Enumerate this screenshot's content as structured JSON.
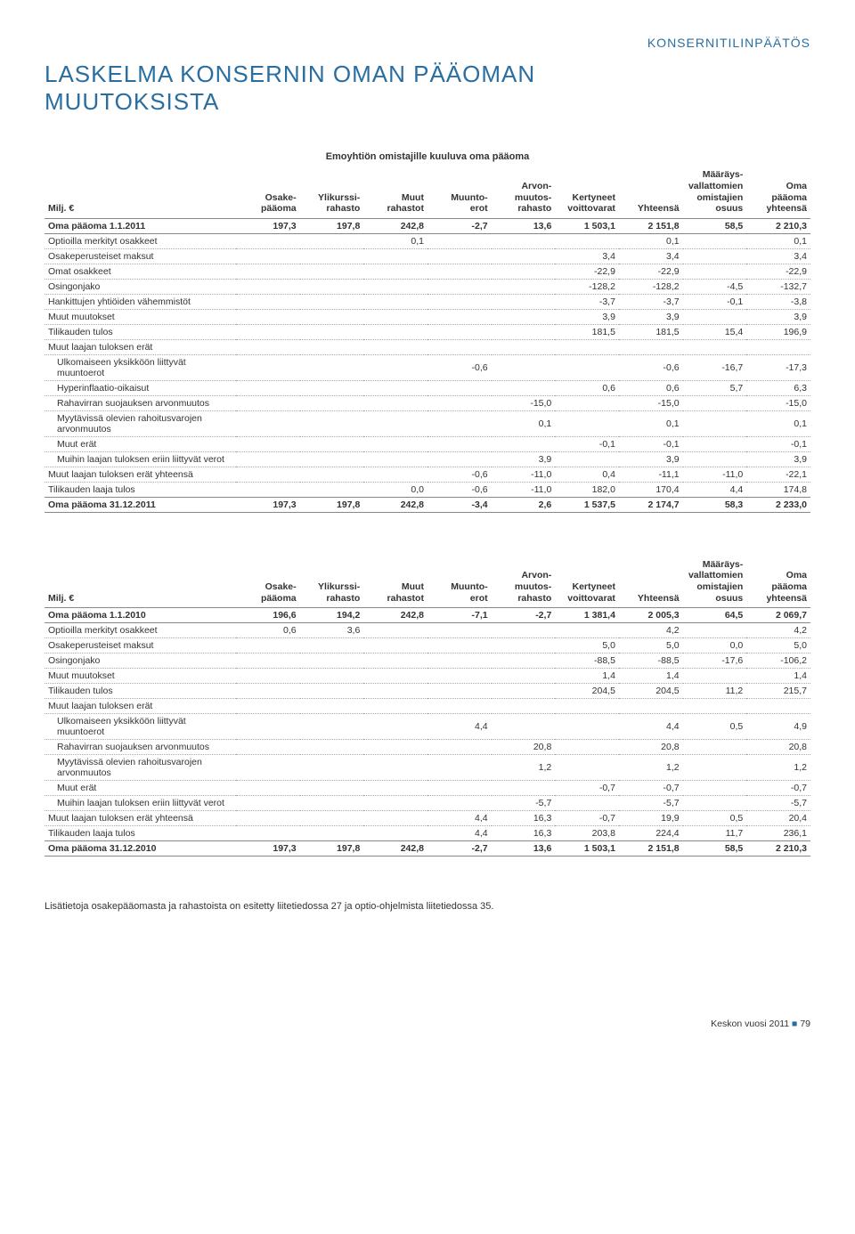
{
  "header_right": "KONSERNITILINPÄÄTÖS",
  "title_line1": "LASKELMA KONSERNIN OMAN PÄÄOMAN",
  "title_line2": "MUUTOKSISTA",
  "subtitle": "Emoyhtiön omistajille kuuluva oma pääoma",
  "columns": [
    "Milj. €",
    "Osake-\npääoma",
    "Ylikurssi-\nrahasto",
    "Muut\nrahastot",
    "Muunto-\nerot",
    "Arvon-\nmuutos-\nrahasto",
    "Kertyneet\nvoittovarat",
    "Yhteensä",
    "Määräys-\nvallattomien\nomistajien\nosuus",
    "Oma\npääoma\nyhteensä"
  ],
  "table1": [
    {
      "bold": true,
      "label": "Oma pääoma 1.1.2011",
      "cells": [
        "197,3",
        "197,8",
        "242,8",
        "-2,7",
        "13,6",
        "1 503,1",
        "2 151,8",
        "58,5",
        "2 210,3"
      ]
    },
    {
      "label": "Optioilla merkityt osakkeet",
      "cells": [
        "",
        "",
        "0,1",
        "",
        "",
        "",
        "0,1",
        "",
        "0,1"
      ]
    },
    {
      "label": "Osakeperusteiset maksut",
      "cells": [
        "",
        "",
        "",
        "",
        "",
        "3,4",
        "3,4",
        "",
        "3,4"
      ]
    },
    {
      "label": "Omat osakkeet",
      "cells": [
        "",
        "",
        "",
        "",
        "",
        "-22,9",
        "-22,9",
        "",
        "-22,9"
      ]
    },
    {
      "label": "Osingonjako",
      "cells": [
        "",
        "",
        "",
        "",
        "",
        "-128,2",
        "-128,2",
        "-4,5",
        "-132,7"
      ]
    },
    {
      "label": "Hankittujen yhtiöiden vähemmistöt",
      "cells": [
        "",
        "",
        "",
        "",
        "",
        "-3,7",
        "-3,7",
        "-0,1",
        "-3,8"
      ]
    },
    {
      "label": "Muut muutokset",
      "cells": [
        "",
        "",
        "",
        "",
        "",
        "3,9",
        "3,9",
        "",
        "3,9"
      ]
    },
    {
      "label": "Tilikauden tulos",
      "cells": [
        "",
        "",
        "",
        "",
        "",
        "181,5",
        "181,5",
        "15,4",
        "196,9"
      ]
    },
    {
      "label": "Muut laajan tuloksen erät",
      "cells": [
        "",
        "",
        "",
        "",
        "",
        "",
        "",
        "",
        ""
      ]
    },
    {
      "indent": true,
      "label": "Ulkomaiseen yksikköön liittyvät muuntoerot",
      "cells": [
        "",
        "",
        "",
        "-0,6",
        "",
        "",
        "-0,6",
        "-16,7",
        "-17,3"
      ]
    },
    {
      "indent": true,
      "label": "Hyperinflaatio-oikaisut",
      "cells": [
        "",
        "",
        "",
        "",
        "",
        "0,6",
        "0,6",
        "5,7",
        "6,3"
      ]
    },
    {
      "indent": true,
      "label": "Rahavirran suojauksen arvonmuutos",
      "cells": [
        "",
        "",
        "",
        "",
        "-15,0",
        "",
        "-15,0",
        "",
        "-15,0"
      ]
    },
    {
      "indent": true,
      "label": "Myytävissä olevien rahoitusvarojen arvonmuutos",
      "cells": [
        "",
        "",
        "",
        "",
        "0,1",
        "",
        "0,1",
        "",
        "0,1"
      ]
    },
    {
      "indent": true,
      "label": "Muut erät",
      "cells": [
        "",
        "",
        "",
        "",
        "",
        "-0,1",
        "-0,1",
        "",
        "-0,1"
      ]
    },
    {
      "indent": true,
      "label": "Muihin laajan tuloksen eriin liittyvät verot",
      "cells": [
        "",
        "",
        "",
        "",
        "3,9",
        "",
        "3,9",
        "",
        "3,9"
      ]
    },
    {
      "label": "Muut laajan tuloksen erät yhteensä",
      "cells": [
        "",
        "",
        "",
        "-0,6",
        "-11,0",
        "0,4",
        "-11,1",
        "-11,0",
        "-22,1"
      ]
    },
    {
      "label": "Tilikauden laaja tulos",
      "cells": [
        "",
        "",
        "0,0",
        "-0,6",
        "-11,0",
        "182,0",
        "170,4",
        "4,4",
        "174,8"
      ]
    },
    {
      "boldTop": true,
      "label": "Oma pääoma 31.12.2011",
      "cells": [
        "197,3",
        "197,8",
        "242,8",
        "-3,4",
        "2,6",
        "1 537,5",
        "2 174,7",
        "58,3",
        "2 233,0"
      ]
    }
  ],
  "table2": [
    {
      "bold": true,
      "label": "Oma pääoma 1.1.2010",
      "cells": [
        "196,6",
        "194,2",
        "242,8",
        "-7,1",
        "-2,7",
        "1 381,4",
        "2 005,3",
        "64,5",
        "2 069,7"
      ]
    },
    {
      "label": "Optioilla merkityt osakkeet",
      "cells": [
        "0,6",
        "3,6",
        "",
        "",
        "",
        "",
        "4,2",
        "",
        "4,2"
      ]
    },
    {
      "label": "Osakeperusteiset maksut",
      "cells": [
        "",
        "",
        "",
        "",
        "",
        "5,0",
        "5,0",
        "0,0",
        "5,0"
      ]
    },
    {
      "label": "Osingonjako",
      "cells": [
        "",
        "",
        "",
        "",
        "",
        "-88,5",
        "-88,5",
        "-17,6",
        "-106,2"
      ]
    },
    {
      "label": "Muut muutokset",
      "cells": [
        "",
        "",
        "",
        "",
        "",
        "1,4",
        "1,4",
        "",
        "1,4"
      ]
    },
    {
      "label": "Tilikauden tulos",
      "cells": [
        "",
        "",
        "",
        "",
        "",
        "204,5",
        "204,5",
        "11,2",
        "215,7"
      ]
    },
    {
      "label": "Muut laajan tuloksen erät",
      "cells": [
        "",
        "",
        "",
        "",
        "",
        "",
        "",
        "",
        ""
      ]
    },
    {
      "indent": true,
      "label": "Ulkomaiseen yksikköön liittyvät muuntoerot",
      "cells": [
        "",
        "",
        "",
        "4,4",
        "",
        "",
        "4,4",
        "0,5",
        "4,9"
      ]
    },
    {
      "indent": true,
      "label": "Rahavirran suojauksen arvonmuutos",
      "cells": [
        "",
        "",
        "",
        "",
        "20,8",
        "",
        "20,8",
        "",
        "20,8"
      ]
    },
    {
      "indent": true,
      "label": "Myytävissä olevien rahoitusvarojen arvonmuutos",
      "cells": [
        "",
        "",
        "",
        "",
        "1,2",
        "",
        "1,2",
        "",
        "1,2"
      ]
    },
    {
      "indent": true,
      "label": "Muut erät",
      "cells": [
        "",
        "",
        "",
        "",
        "",
        "-0,7",
        "-0,7",
        "",
        "-0,7"
      ]
    },
    {
      "indent": true,
      "label": "Muihin laajan tuloksen eriin liittyvät verot",
      "cells": [
        "",
        "",
        "",
        "",
        "-5,7",
        "",
        "-5,7",
        "",
        "-5,7"
      ]
    },
    {
      "label": "Muut laajan tuloksen erät yhteensä",
      "cells": [
        "",
        "",
        "",
        "4,4",
        "16,3",
        "-0,7",
        "19,9",
        "0,5",
        "20,4"
      ]
    },
    {
      "label": "Tilikauden laaja tulos",
      "cells": [
        "",
        "",
        "",
        "4,4",
        "16,3",
        "203,8",
        "224,4",
        "11,7",
        "236,1"
      ]
    },
    {
      "boldTop": true,
      "label": "Oma pääoma 31.12.2010",
      "cells": [
        "197,3",
        "197,8",
        "242,8",
        "-2,7",
        "13,6",
        "1 503,1",
        "2 151,8",
        "58,5",
        "2 210,3"
      ]
    }
  ],
  "footnote": "Lisätietoja osakepääomasta ja rahastoista on esitetty liitetiedossa 27 ja optio-ohjelmista liitetiedossa 35.",
  "footer_text": "Keskon vuosi 2011",
  "footer_page": "79"
}
